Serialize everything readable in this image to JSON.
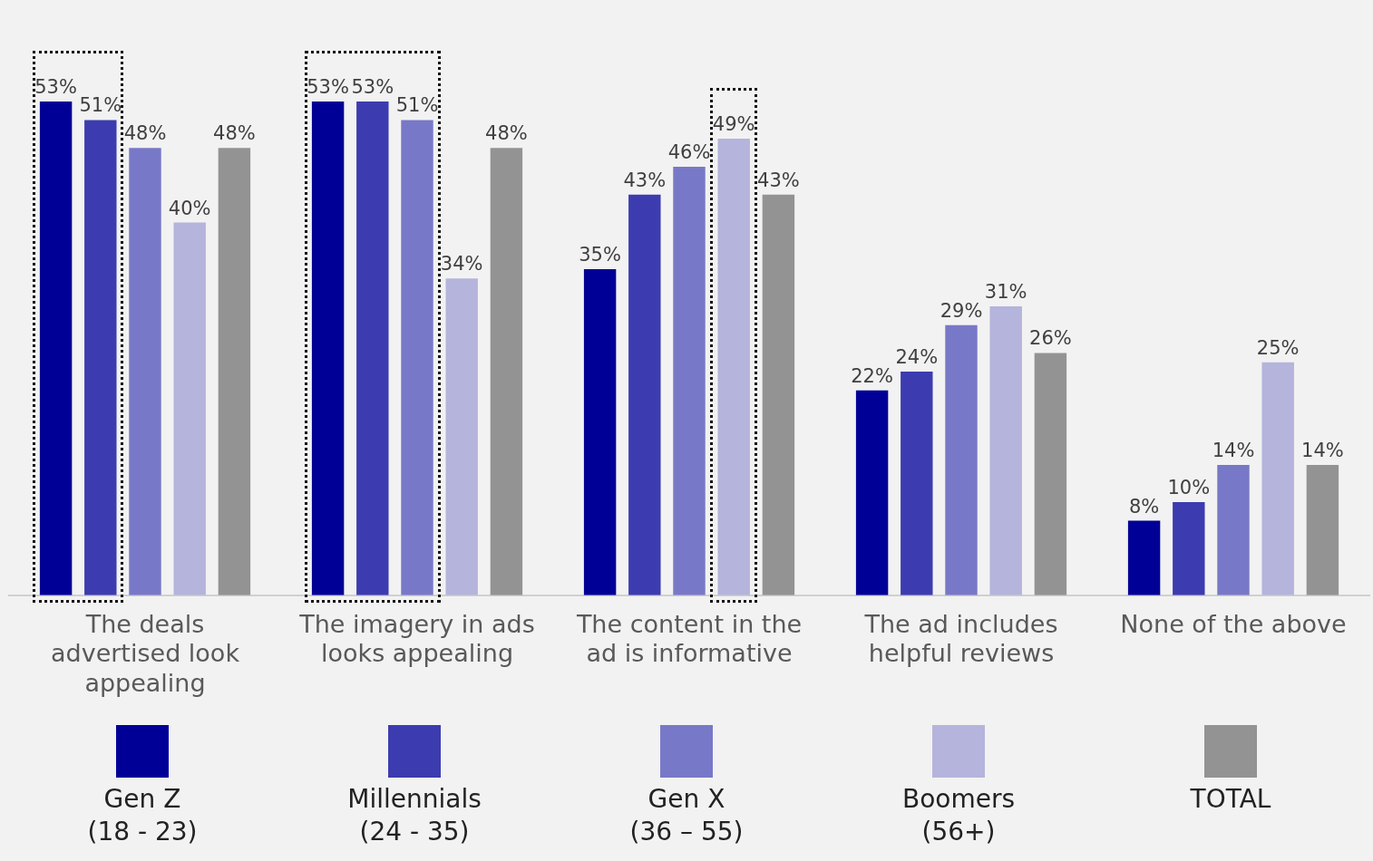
{
  "chart_data": {
    "type": "bar",
    "categories": [
      "The deals advertised look appealing",
      "The imagery in ads looks appealing",
      "The content in the ad is informative",
      "The ad includes helpful reviews",
      "None of the above"
    ],
    "series": [
      {
        "name": "Gen Z\n(18 - 23)",
        "color": "#000096",
        "values": [
          53,
          53,
          35,
          22,
          8
        ],
        "value_labels": [
          "53%",
          "53%",
          "35%",
          "22%",
          "8%"
        ]
      },
      {
        "name": "Millennials\n(24 - 35)",
        "color": "#3c3cb0",
        "values": [
          51,
          53,
          43,
          24,
          10
        ],
        "value_labels": [
          "51%",
          "53%",
          "43%",
          "24%",
          "10%"
        ]
      },
      {
        "name": "Gen X\n(36 – 55)",
        "color": "#7878c8",
        "values": [
          48,
          51,
          46,
          29,
          14
        ],
        "value_labels": [
          "48%",
          "51%",
          "46%",
          "29%",
          "14%"
        ]
      },
      {
        "name": "Boomers\n(56+)",
        "color": "#b4b4dc",
        "values": [
          40,
          34,
          49,
          31,
          25
        ],
        "value_labels": [
          "40%",
          "34%",
          "49%",
          "31%",
          "25%"
        ]
      },
      {
        "name": "TOTAL",
        "color": "#939393",
        "values": [
          48,
          48,
          43,
          26,
          14
        ],
        "value_labels": [
          "48%",
          "48%",
          "43%",
          "26%",
          "14%"
        ]
      }
    ],
    "legend": "bottom",
    "grid": false
  }
}
